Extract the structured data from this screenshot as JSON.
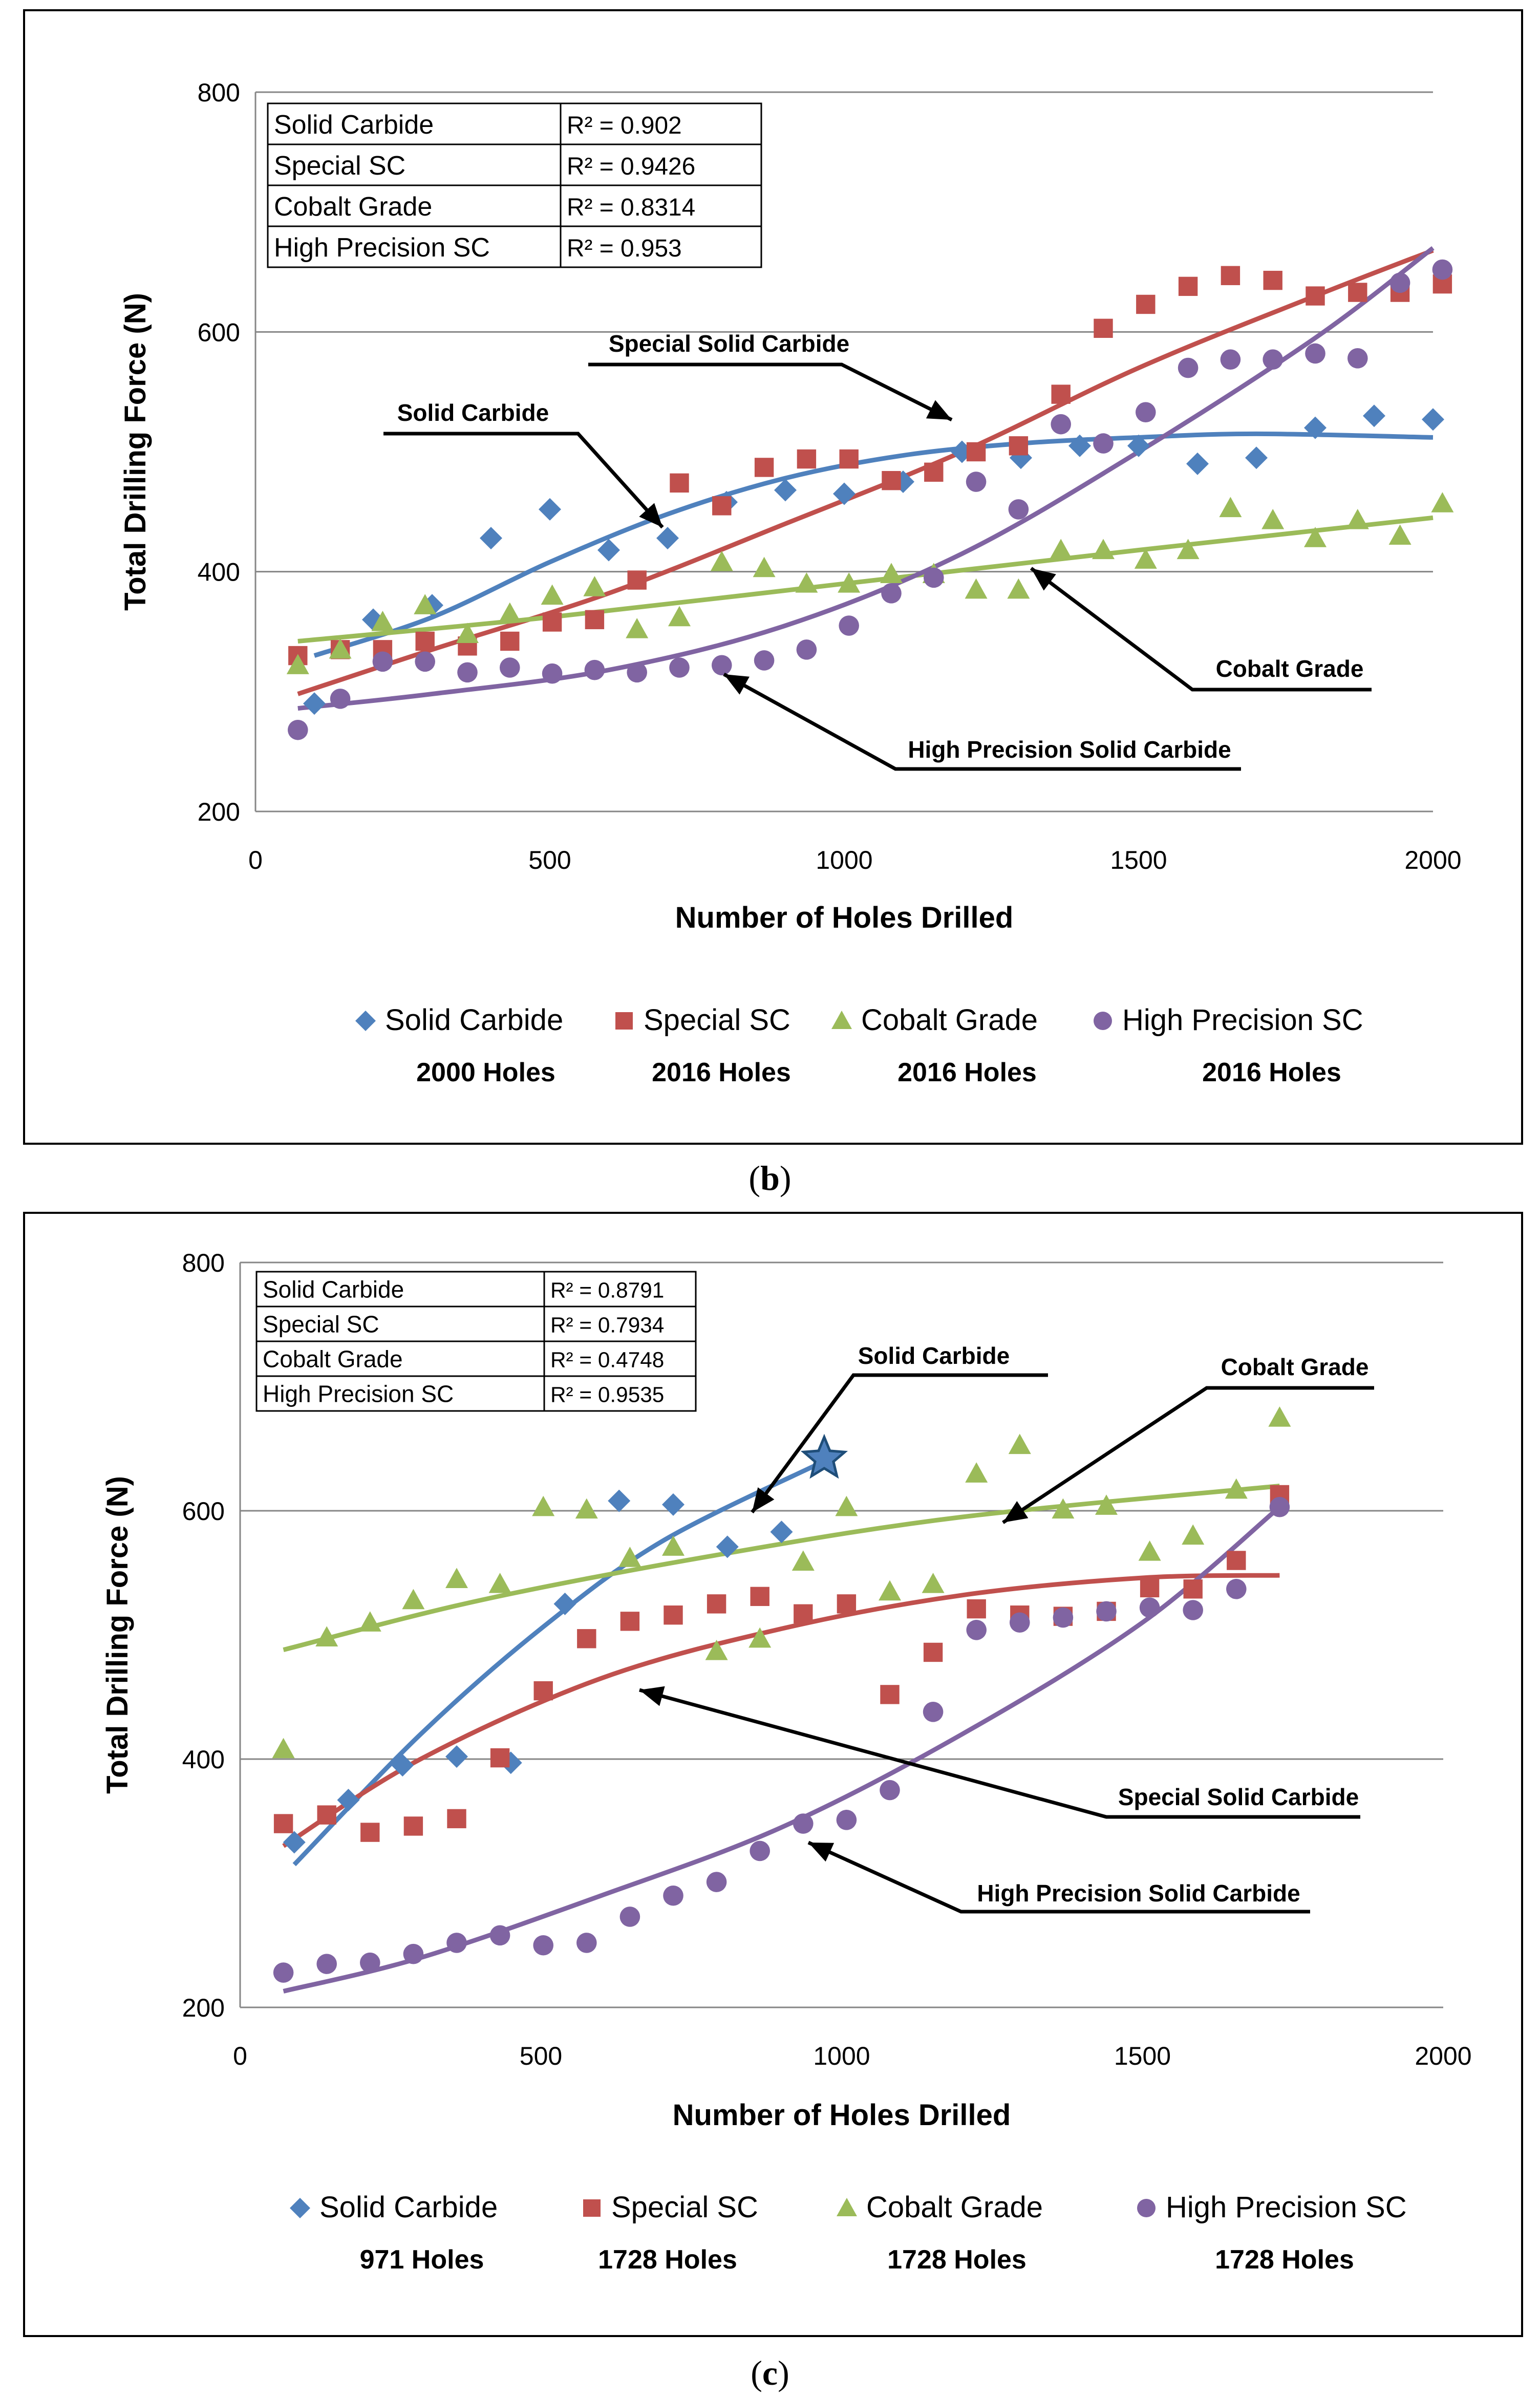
{
  "figure": {
    "caption_b_letter": "b",
    "caption_c_letter": "c"
  },
  "colors": {
    "solid_carbide": "#4f81bd",
    "special_sc": "#c0504d",
    "cobalt_grade": "#9bbb59",
    "high_precision_sc": "#8064a2"
  },
  "chart_data": [
    {
      "type": "scatter",
      "panel": "b",
      "xlabel": "Number of Holes Drilled",
      "ylabel": "Total Drilling Force (N)",
      "xlim": [
        0,
        2000
      ],
      "ylim": [
        200,
        800
      ],
      "xticks": [
        0,
        500,
        1000,
        1500,
        2000
      ],
      "yticks": [
        200,
        400,
        600,
        800
      ],
      "grid": "horizontal",
      "legend_position": "bottom",
      "r2_table": [
        {
          "label": "Solid Carbide",
          "value": "R² = 0.902"
        },
        {
          "label": "Special SC",
          "value": "R² = 0.9426"
        },
        {
          "label": "Cobalt Grade",
          "value": "R² = 0.8314"
        },
        {
          "label": "High Precision SC",
          "value": "R² = 0.953"
        }
      ],
      "series": [
        {
          "name": "Solid Carbide",
          "holes": "2000 Holes",
          "points": [
            [
              100,
              290
            ],
            [
              200,
              360
            ],
            [
              300,
              372
            ],
            [
              400,
              428
            ],
            [
              500,
              452
            ],
            [
              600,
              418
            ],
            [
              700,
              428
            ],
            [
              800,
              458
            ],
            [
              900,
              468
            ],
            [
              1000,
              465
            ],
            [
              1100,
              475
            ],
            [
              1200,
              500
            ],
            [
              1300,
              495
            ],
            [
              1400,
              505
            ],
            [
              1500,
              505
            ],
            [
              1600,
              490
            ],
            [
              1700,
              495
            ],
            [
              1800,
              520
            ],
            [
              1900,
              530
            ],
            [
              2000,
              527
            ]
          ],
          "trend": [
            [
              100,
              330
            ],
            [
              300,
              362
            ],
            [
              500,
              408
            ],
            [
              700,
              448
            ],
            [
              900,
              478
            ],
            [
              1100,
              497
            ],
            [
              1300,
              507
            ],
            [
              1500,
              512
            ],
            [
              1700,
              515
            ],
            [
              2000,
              512
            ]
          ]
        },
        {
          "name": "Special SC",
          "holes": "2016 Holes",
          "points": [
            [
              72,
              330
            ],
            [
              144,
              335
            ],
            [
              216,
              335
            ],
            [
              288,
              342
            ],
            [
              360,
              338
            ],
            [
              432,
              342
            ],
            [
              504,
              358
            ],
            [
              576,
              360
            ],
            [
              648,
              393
            ],
            [
              720,
              474
            ],
            [
              792,
              455
            ],
            [
              864,
              487
            ],
            [
              936,
              494
            ],
            [
              1008,
              494
            ],
            [
              1080,
              476
            ],
            [
              1152,
              483
            ],
            [
              1224,
              500
            ],
            [
              1296,
              505
            ],
            [
              1368,
              548
            ],
            [
              1440,
              603
            ],
            [
              1512,
              623
            ],
            [
              1584,
              638
            ],
            [
              1656,
              647
            ],
            [
              1728,
              643
            ],
            [
              1800,
              630
            ],
            [
              1872,
              633
            ],
            [
              1944,
              633
            ],
            [
              2016,
              640
            ]
          ],
          "trend": [
            [
              72,
              298
            ],
            [
              300,
              335
            ],
            [
              600,
              382
            ],
            [
              900,
              440
            ],
            [
              1200,
              500
            ],
            [
              1500,
              570
            ],
            [
              1800,
              630
            ],
            [
              2000,
              668
            ]
          ]
        },
        {
          "name": "Cobalt Grade",
          "holes": "2016 Holes",
          "points": [
            [
              72,
              322
            ],
            [
              144,
              335
            ],
            [
              216,
              358
            ],
            [
              288,
              372
            ],
            [
              360,
              348
            ],
            [
              432,
              365
            ],
            [
              504,
              380
            ],
            [
              576,
              387
            ],
            [
              648,
              352
            ],
            [
              720,
              362
            ],
            [
              792,
              408
            ],
            [
              864,
              403
            ],
            [
              936,
              390
            ],
            [
              1008,
              390
            ],
            [
              1080,
              398
            ],
            [
              1152,
              398
            ],
            [
              1224,
              385
            ],
            [
              1296,
              385
            ],
            [
              1368,
              418
            ],
            [
              1440,
              418
            ],
            [
              1512,
              410
            ],
            [
              1584,
              418
            ],
            [
              1656,
              453
            ],
            [
              1728,
              443
            ],
            [
              1800,
              428
            ],
            [
              1872,
              443
            ],
            [
              1944,
              430
            ],
            [
              2016,
              457
            ]
          ],
          "trend": [
            [
              72,
              342
            ],
            [
              500,
              362
            ],
            [
              1000,
              390
            ],
            [
              1500,
              418
            ],
            [
              2000,
              445
            ]
          ]
        },
        {
          "name": "High Precision SC",
          "holes": "2016 Holes",
          "points": [
            [
              72,
              268
            ],
            [
              144,
              294
            ],
            [
              216,
              325
            ],
            [
              288,
              325
            ],
            [
              360,
              316
            ],
            [
              432,
              320
            ],
            [
              504,
              315
            ],
            [
              576,
              318
            ],
            [
              648,
              316
            ],
            [
              720,
              320
            ],
            [
              792,
              322
            ],
            [
              864,
              326
            ],
            [
              936,
              335
            ],
            [
              1008,
              355
            ],
            [
              1080,
              382
            ],
            [
              1152,
              395
            ],
            [
              1224,
              475
            ],
            [
              1296,
              452
            ],
            [
              1368,
              523
            ],
            [
              1440,
              507
            ],
            [
              1512,
              533
            ],
            [
              1584,
              570
            ],
            [
              1656,
              577
            ],
            [
              1728,
              577
            ],
            [
              1800,
              582
            ],
            [
              1872,
              578
            ],
            [
              1944,
              641
            ],
            [
              2016,
              652
            ]
          ],
          "trend": [
            [
              72,
              286
            ],
            [
              300,
              298
            ],
            [
              600,
              318
            ],
            [
              900,
              355
            ],
            [
              1200,
              415
            ],
            [
              1500,
              500
            ],
            [
              1800,
              595
            ],
            [
              2000,
              670
            ]
          ]
        }
      ],
      "annotations": [
        "Special Solid Carbide",
        "Solid Carbide",
        "Cobalt Grade",
        "High Precision Solid Carbide"
      ]
    },
    {
      "type": "scatter",
      "panel": "c",
      "xlabel": "Number of Holes Drilled",
      "ylabel": "Total Drilling Force (N)",
      "xlim": [
        0,
        2000
      ],
      "ylim": [
        200,
        800
      ],
      "xticks": [
        0,
        500,
        1000,
        1500,
        2000
      ],
      "yticks": [
        200,
        400,
        600,
        800
      ],
      "grid": "horizontal",
      "legend_position": "bottom",
      "r2_table": [
        {
          "label": "Solid Carbide",
          "value": "R² = 0.8791"
        },
        {
          "label": "Special SC",
          "value": "R² = 0.7934"
        },
        {
          "label": "Cobalt Grade",
          "value": "R² = 0.4748"
        },
        {
          "label": "High Precision SC",
          "value": "R² = 0.9535"
        }
      ],
      "series": [
        {
          "name": "Solid Carbide",
          "holes": "971 Holes",
          "points": [
            [
              90,
              333
            ],
            [
              180,
              367
            ],
            [
              270,
              395
            ],
            [
              360,
              402
            ],
            [
              450,
              397
            ],
            [
              540,
              525
            ],
            [
              630,
              608
            ],
            [
              720,
              605
            ],
            [
              810,
              571
            ],
            [
              900,
              583
            ]
          ],
          "trend": [
            [
              90,
              315
            ],
            [
              300,
              420
            ],
            [
              500,
              505
            ],
            [
              700,
              575
            ],
            [
              971,
              640
            ]
          ],
          "end_marker": [
            971,
            642
          ]
        },
        {
          "name": "Special SC",
          "holes": "1728 Holes",
          "points": [
            [
              72,
              348
            ],
            [
              144,
              355
            ],
            [
              216,
              341
            ],
            [
              288,
              346
            ],
            [
              360,
              352
            ],
            [
              432,
              401
            ],
            [
              504,
              455
            ],
            [
              576,
              497
            ],
            [
              648,
              511
            ],
            [
              720,
              516
            ],
            [
              792,
              525
            ],
            [
              864,
              531
            ],
            [
              936,
              517
            ],
            [
              1008,
              525
            ],
            [
              1080,
              452
            ],
            [
              1152,
              486
            ],
            [
              1224,
              521
            ],
            [
              1296,
              516
            ],
            [
              1368,
              515
            ],
            [
              1440,
              519
            ],
            [
              1512,
              538
            ],
            [
              1584,
              537
            ],
            [
              1656,
              560
            ],
            [
              1728,
              613
            ]
          ],
          "trend": [
            [
              72,
              330
            ],
            [
              300,
              400
            ],
            [
              600,
              465
            ],
            [
              900,
              505
            ],
            [
              1200,
              532
            ],
            [
              1500,
              546
            ],
            [
              1728,
              548
            ]
          ]
        },
        {
          "name": "Cobalt Grade",
          "holes": "1728 Holes",
          "points": [
            [
              72,
              408
            ],
            [
              144,
              498
            ],
            [
              216,
              510
            ],
            [
              288,
              528
            ],
            [
              360,
              545
            ],
            [
              432,
              541
            ],
            [
              504,
              603
            ],
            [
              576,
              601
            ],
            [
              648,
              562
            ],
            [
              720,
              571
            ],
            [
              792,
              487
            ],
            [
              864,
              497
            ],
            [
              936,
              559
            ],
            [
              1008,
              603
            ],
            [
              1080,
              535
            ],
            [
              1152,
              541
            ],
            [
              1224,
              630
            ],
            [
              1296,
              653
            ],
            [
              1368,
              601
            ],
            [
              1440,
              604
            ],
            [
              1512,
              567
            ],
            [
              1584,
              580
            ],
            [
              1656,
              617
            ],
            [
              1728,
              675
            ]
          ],
          "trend": [
            [
              72,
              488
            ],
            [
              400,
              528
            ],
            [
              800,
              565
            ],
            [
              1200,
              595
            ],
            [
              1728,
              620
            ]
          ]
        },
        {
          "name": "High Precision SC",
          "holes": "1728 Holes",
          "points": [
            [
              72,
              228
            ],
            [
              144,
              235
            ],
            [
              216,
              236
            ],
            [
              288,
              243
            ],
            [
              360,
              252
            ],
            [
              432,
              258
            ],
            [
              504,
              250
            ],
            [
              576,
              252
            ],
            [
              648,
              273
            ],
            [
              720,
              290
            ],
            [
              792,
              301
            ],
            [
              864,
              326
            ],
            [
              936,
              348
            ],
            [
              1008,
              351
            ],
            [
              1080,
              375
            ],
            [
              1152,
              438
            ],
            [
              1224,
              504
            ],
            [
              1296,
              510
            ],
            [
              1368,
              514
            ],
            [
              1440,
              519
            ],
            [
              1512,
              522
            ],
            [
              1584,
              520
            ],
            [
              1656,
              537
            ],
            [
              1728,
              603
            ]
          ],
          "trend": [
            [
              72,
              213
            ],
            [
              300,
              240
            ],
            [
              600,
              290
            ],
            [
              900,
              345
            ],
            [
              1200,
              420
            ],
            [
              1500,
              510
            ],
            [
              1728,
              603
            ]
          ]
        }
      ],
      "annotations": [
        "Solid Carbide",
        "Cobalt Grade",
        "Special Solid Carbide",
        "High Precision Solid Carbide"
      ]
    }
  ]
}
